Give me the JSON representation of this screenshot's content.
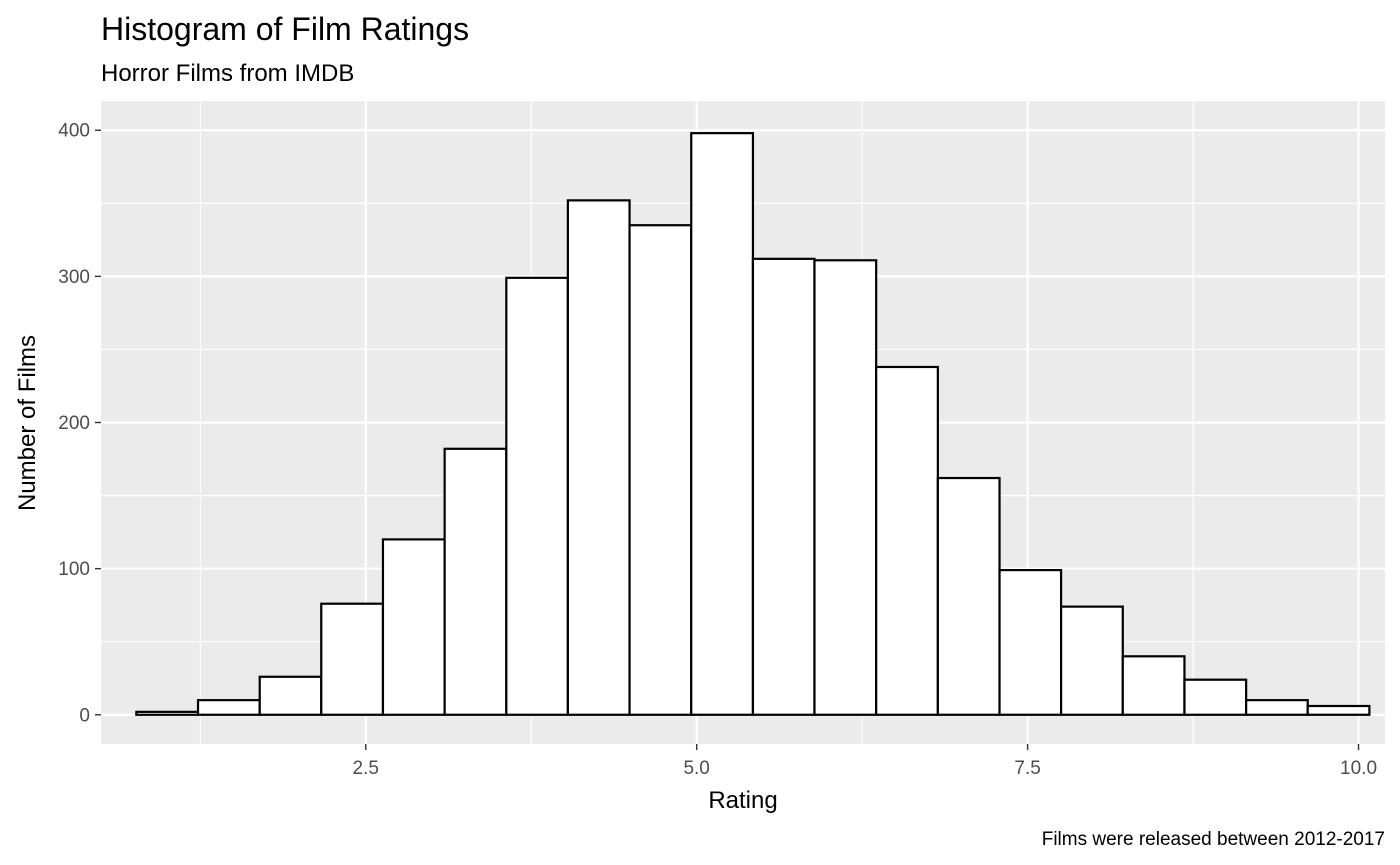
{
  "chart_data": {
    "type": "bar",
    "title": "Histogram of Film Ratings",
    "subtitle": "Horror Films from IMDB",
    "xlabel": "Rating",
    "ylabel": "Number of Films",
    "caption": "Films were released between 2012-2017",
    "xlim": [
      0.5,
      10.2
    ],
    "ylim": [
      -20,
      420
    ],
    "x_ticks": [
      2.5,
      5.0,
      7.5,
      10.0
    ],
    "x_tick_labels": [
      "2.5",
      "5.0",
      "7.5",
      "10.0"
    ],
    "y_ticks": [
      0,
      100,
      200,
      300,
      400
    ],
    "y_tick_labels": [
      "0",
      "100",
      "200",
      "300",
      "400"
    ],
    "bin_width": 0.4658,
    "bins": [
      {
        "x0": 0.767,
        "x1": 1.233,
        "count": 2
      },
      {
        "x0": 1.233,
        "x1": 1.699,
        "count": 10
      },
      {
        "x0": 1.699,
        "x1": 2.164,
        "count": 26
      },
      {
        "x0": 2.164,
        "x1": 2.63,
        "count": 76
      },
      {
        "x0": 2.63,
        "x1": 3.096,
        "count": 120
      },
      {
        "x0": 3.096,
        "x1": 3.562,
        "count": 182
      },
      {
        "x0": 3.562,
        "x1": 4.027,
        "count": 299
      },
      {
        "x0": 4.027,
        "x1": 4.493,
        "count": 352
      },
      {
        "x0": 4.493,
        "x1": 4.959,
        "count": 335
      },
      {
        "x0": 4.959,
        "x1": 5.425,
        "count": 398
      },
      {
        "x0": 5.425,
        "x1": 5.89,
        "count": 312
      },
      {
        "x0": 5.89,
        "x1": 6.356,
        "count": 311
      },
      {
        "x0": 6.356,
        "x1": 6.822,
        "count": 238
      },
      {
        "x0": 6.822,
        "x1": 7.288,
        "count": 162
      },
      {
        "x0": 7.288,
        "x1": 7.753,
        "count": 99
      },
      {
        "x0": 7.753,
        "x1": 8.219,
        "count": 74
      },
      {
        "x0": 8.219,
        "x1": 8.685,
        "count": 40
      },
      {
        "x0": 8.685,
        "x1": 9.151,
        "count": 24
      },
      {
        "x0": 9.151,
        "x1": 9.616,
        "count": 10
      },
      {
        "x0": 9.616,
        "x1": 10.082,
        "count": 6
      }
    ],
    "grid": true,
    "panel_background": "#ebebeb",
    "grid_color": "#ffffff",
    "bar_fill": "#ffffff",
    "bar_stroke": "#000000"
  }
}
